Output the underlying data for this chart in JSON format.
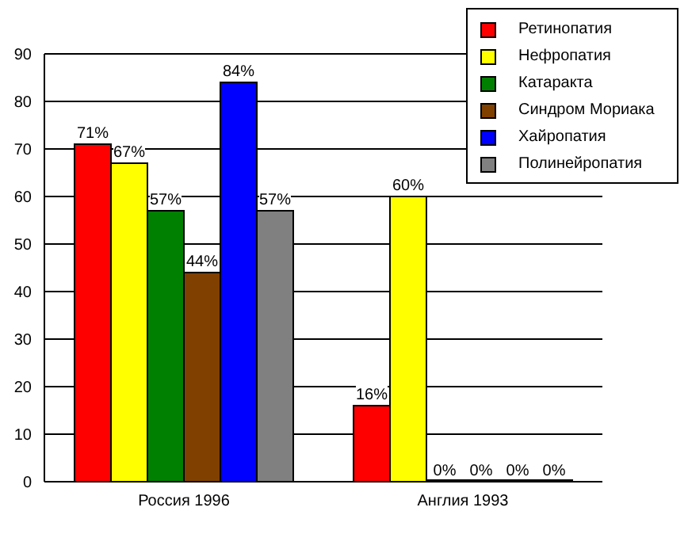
{
  "chart_data": {
    "type": "bar",
    "categories": [
      "Россия 1996",
      "Англия 1993"
    ],
    "series": [
      {
        "name": "Ретинопатия",
        "color": "#ff0000",
        "values": [
          71,
          16
        ],
        "value_labels": [
          "71%",
          "16%"
        ]
      },
      {
        "name": "Нефропатия",
        "color": "#ffff00",
        "values": [
          67,
          60
        ],
        "value_labels": [
          "67%",
          "60%"
        ]
      },
      {
        "name": "Катаракта",
        "color": "#008000",
        "values": [
          57,
          0
        ],
        "value_labels": [
          "57%",
          "0%"
        ]
      },
      {
        "name": "Синдром Мориака",
        "color": "#804000",
        "values": [
          44,
          0
        ],
        "value_labels": [
          "44%",
          "0%"
        ]
      },
      {
        "name": "Хайропатия",
        "color": "#0000ff",
        "values": [
          84,
          0
        ],
        "value_labels": [
          "84%",
          "0%"
        ]
      },
      {
        "name": "Полинейропатия",
        "color": "#808080",
        "values": [
          57,
          0
        ],
        "value_labels": [
          "57%",
          "0%"
        ]
      }
    ],
    "ylim": [
      0,
      90
    ],
    "yticks": [
      0,
      10,
      20,
      30,
      40,
      50,
      60,
      70,
      80,
      90
    ],
    "grid": "y",
    "legend": "top right"
  }
}
